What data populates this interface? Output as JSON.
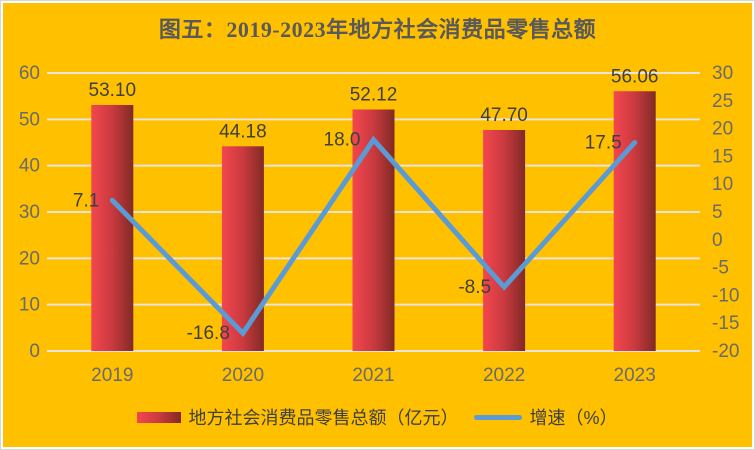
{
  "colors": {
    "background": "#FFC000",
    "frame": "#FFFFFF",
    "gridline": "#E8E3DB",
    "title_text": "#595959",
    "axis_text": "#6A6A6A",
    "data_label_text": "#3F3F3F",
    "legend_text": "#404040",
    "bar_gradient": [
      "#F4464E",
      "#C93A3F",
      "#812A25"
    ],
    "line": "#5B9BD5"
  },
  "chart_data": {
    "type": "bar",
    "subtype": "bar-line-combo",
    "title": "图五：2019-2023年地方社会消费品零售总额",
    "categories": [
      "2019",
      "2020",
      "2021",
      "2022",
      "2023"
    ],
    "series": [
      {
        "name": "地方社会消费品零售总额（亿元）",
        "type": "bar",
        "axis": "left",
        "values": [
          53.1,
          44.18,
          52.12,
          47.7,
          56.06
        ],
        "labels": [
          "53.10",
          "44.18",
          "52.12",
          "47.70",
          "56.06"
        ]
      },
      {
        "name": "增速（%）",
        "type": "line",
        "axis": "right",
        "values": [
          7.1,
          -16.8,
          18.0,
          -8.5,
          17.5
        ],
        "labels": [
          "7.1",
          "-16.8",
          "18.0",
          "-8.5",
          "17.5"
        ]
      }
    ],
    "left_axis": {
      "min": 0,
      "max": 60,
      "step": 10,
      "ticks": [
        "0",
        "10",
        "20",
        "30",
        "40",
        "50",
        "60"
      ]
    },
    "right_axis": {
      "min": -20,
      "max": 30,
      "step": 5,
      "ticks": [
        "-20",
        "-15",
        "-10",
        "-5",
        "0",
        "5",
        "10",
        "15",
        "20",
        "25",
        "30"
      ]
    },
    "grid": true,
    "legend_position": "bottom"
  }
}
